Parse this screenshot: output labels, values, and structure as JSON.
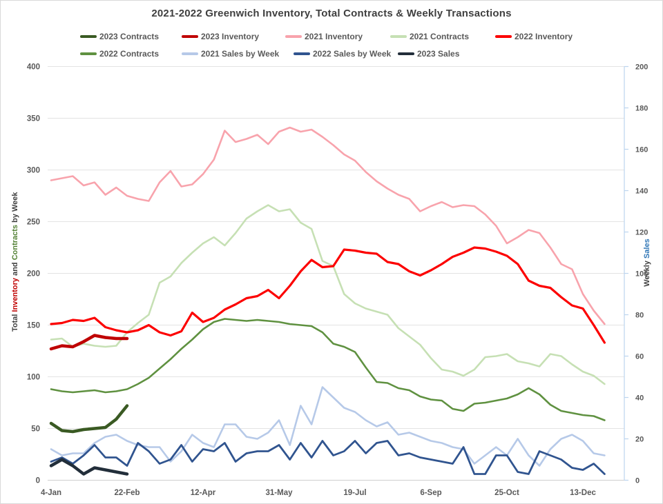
{
  "chart_data": {
    "type": "line",
    "title": "2021-2022 Greenwich Inventory, Total Contracts & Weekly Transactions",
    "x_axis": {
      "tick_labels": [
        "4-Jan",
        "22-Feb",
        "12-Apr",
        "31-May",
        "19-Jul",
        "6-Sep",
        "25-Oct",
        "13-Dec"
      ],
      "label_weeks": [
        1,
        8,
        15,
        22,
        29,
        36,
        43,
        50
      ],
      "weeks": 52
    },
    "left_axis": {
      "ticks": [
        0,
        50,
        100,
        150,
        200,
        250,
        300,
        350,
        400
      ],
      "range": [
        0,
        400
      ],
      "title_parts": [
        {
          "text": "Total ",
          "color": "#404040"
        },
        {
          "text": "Inventory",
          "color": "#c00000"
        },
        {
          "text": " and ",
          "color": "#404040"
        },
        {
          "text": "Contracts",
          "color": "#538135"
        },
        {
          "text": " by Week",
          "color": "#404040"
        }
      ]
    },
    "right_axis": {
      "ticks": [
        0,
        20,
        40,
        60,
        80,
        100,
        120,
        140,
        160,
        180,
        200
      ],
      "range": [
        0,
        200
      ],
      "title_parts": [
        {
          "text": "Weekly ",
          "color": "#404040"
        },
        {
          "text": "Sales",
          "color": "#2e75b6"
        }
      ]
    },
    "legend": {
      "rows": [
        [
          "2023 Contracts",
          "2023 Inventory",
          "2021 Inventory",
          "2021 Contracts",
          "2022 Inventory"
        ],
        [
          "2022 Contracts",
          "2021 Sales by Week",
          "2022 Sales by Week",
          "2023 Sales"
        ]
      ]
    },
    "grid": "horizontal",
    "series": [
      {
        "name": "2021 Inventory",
        "color": "#f8a3ac",
        "axis": "left",
        "width": 2.6,
        "values": [
          290,
          292,
          294,
          285,
          288,
          276,
          283,
          275,
          272,
          270,
          288,
          299,
          284,
          286,
          296,
          310,
          338,
          327,
          330,
          334,
          325,
          337,
          341,
          337,
          339,
          332,
          324,
          315,
          309,
          298,
          289,
          282,
          276,
          272,
          260,
          265,
          269,
          264,
          266,
          265,
          257,
          246,
          229,
          235,
          242,
          239,
          225,
          209,
          204,
          180,
          164,
          151
        ]
      },
      {
        "name": "2021 Contracts",
        "color": "#c6e0b4",
        "axis": "left",
        "width": 2.6,
        "values": [
          136,
          137,
          129,
          132,
          130,
          129,
          130,
          143,
          152,
          160,
          191,
          197,
          210,
          220,
          229,
          235,
          227,
          239,
          253,
          260,
          266,
          260,
          262,
          249,
          243,
          212,
          207,
          180,
          171,
          166,
          163,
          160,
          147,
          139,
          131,
          118,
          107,
          105,
          101,
          107,
          119,
          120,
          122,
          115,
          113,
          110,
          122,
          120,
          112,
          105,
          101,
          93
        ]
      },
      {
        "name": "2022 Contracts",
        "color": "#5f9140",
        "axis": "left",
        "width": 2.6,
        "values": [
          88,
          86,
          85,
          86,
          87,
          85,
          86,
          88,
          93,
          99,
          108,
          117,
          127,
          136,
          146,
          153,
          156,
          155,
          154,
          155,
          154,
          153,
          151,
          150,
          149,
          143,
          132,
          129,
          124,
          109,
          95,
          94,
          89,
          87,
          81,
          78,
          77,
          69,
          67,
          74,
          75,
          77,
          79,
          83,
          89,
          83,
          73,
          67,
          65,
          63,
          62,
          58
        ]
      },
      {
        "name": "2022 Inventory",
        "color": "#fc0000",
        "axis": "left",
        "width": 3.2,
        "values": [
          151,
          152,
          155,
          154,
          157,
          148,
          145,
          143,
          145,
          150,
          143,
          140,
          144,
          162,
          153,
          157,
          165,
          170,
          176,
          178,
          184,
          176,
          188,
          202,
          213,
          206,
          207,
          223,
          222,
          220,
          219,
          211,
          209,
          202,
          198,
          203,
          209,
          216,
          220,
          225,
          224,
          221,
          217,
          209,
          193,
          188,
          186,
          177,
          169,
          166,
          150,
          133
        ]
      },
      {
        "name": "2021 Sales by Week",
        "color": "#b6c9e8",
        "axis": "right",
        "width": 2.6,
        "values": [
          15,
          12,
          13,
          13,
          18,
          21,
          22,
          19,
          17,
          16,
          16,
          9,
          14,
          22,
          18,
          16,
          27,
          27,
          21,
          20,
          23,
          29,
          17,
          36,
          27,
          45,
          40,
          35,
          33,
          29,
          26,
          28,
          22,
          23,
          21,
          19,
          18,
          16,
          15,
          8,
          12,
          16,
          12,
          20,
          12,
          7,
          15,
          20,
          22,
          19,
          13,
          12
        ]
      },
      {
        "name": "2022 Sales by Week",
        "color": "#30548f",
        "axis": "right",
        "width": 2.8,
        "values": [
          9,
          11,
          8,
          12,
          17,
          11,
          11,
          7,
          18,
          14,
          8,
          10,
          17,
          9,
          15,
          14,
          18,
          9,
          13,
          14,
          14,
          17,
          10,
          18,
          11,
          19,
          12,
          14,
          19,
          13,
          18,
          19,
          12,
          13,
          11,
          10,
          9,
          8,
          16,
          3,
          3,
          12,
          12,
          4,
          3,
          14,
          12,
          10,
          6,
          5,
          8,
          3
        ]
      },
      {
        "name": "2023 Inventory",
        "color": "#bf0000",
        "axis": "left",
        "width": 4.5,
        "values": [
          127,
          130,
          129,
          134,
          140,
          138,
          137,
          137
        ]
      },
      {
        "name": "2023 Contracts",
        "color": "#3a5a23",
        "axis": "left",
        "width": 4.5,
        "values": [
          55,
          48,
          47,
          49,
          50,
          51,
          59,
          72
        ]
      },
      {
        "name": "2023 Sales",
        "color": "#222e3a",
        "axis": "right",
        "width": 4.5,
        "values": [
          7,
          10,
          7,
          3,
          6,
          5,
          4,
          3
        ]
      }
    ]
  }
}
